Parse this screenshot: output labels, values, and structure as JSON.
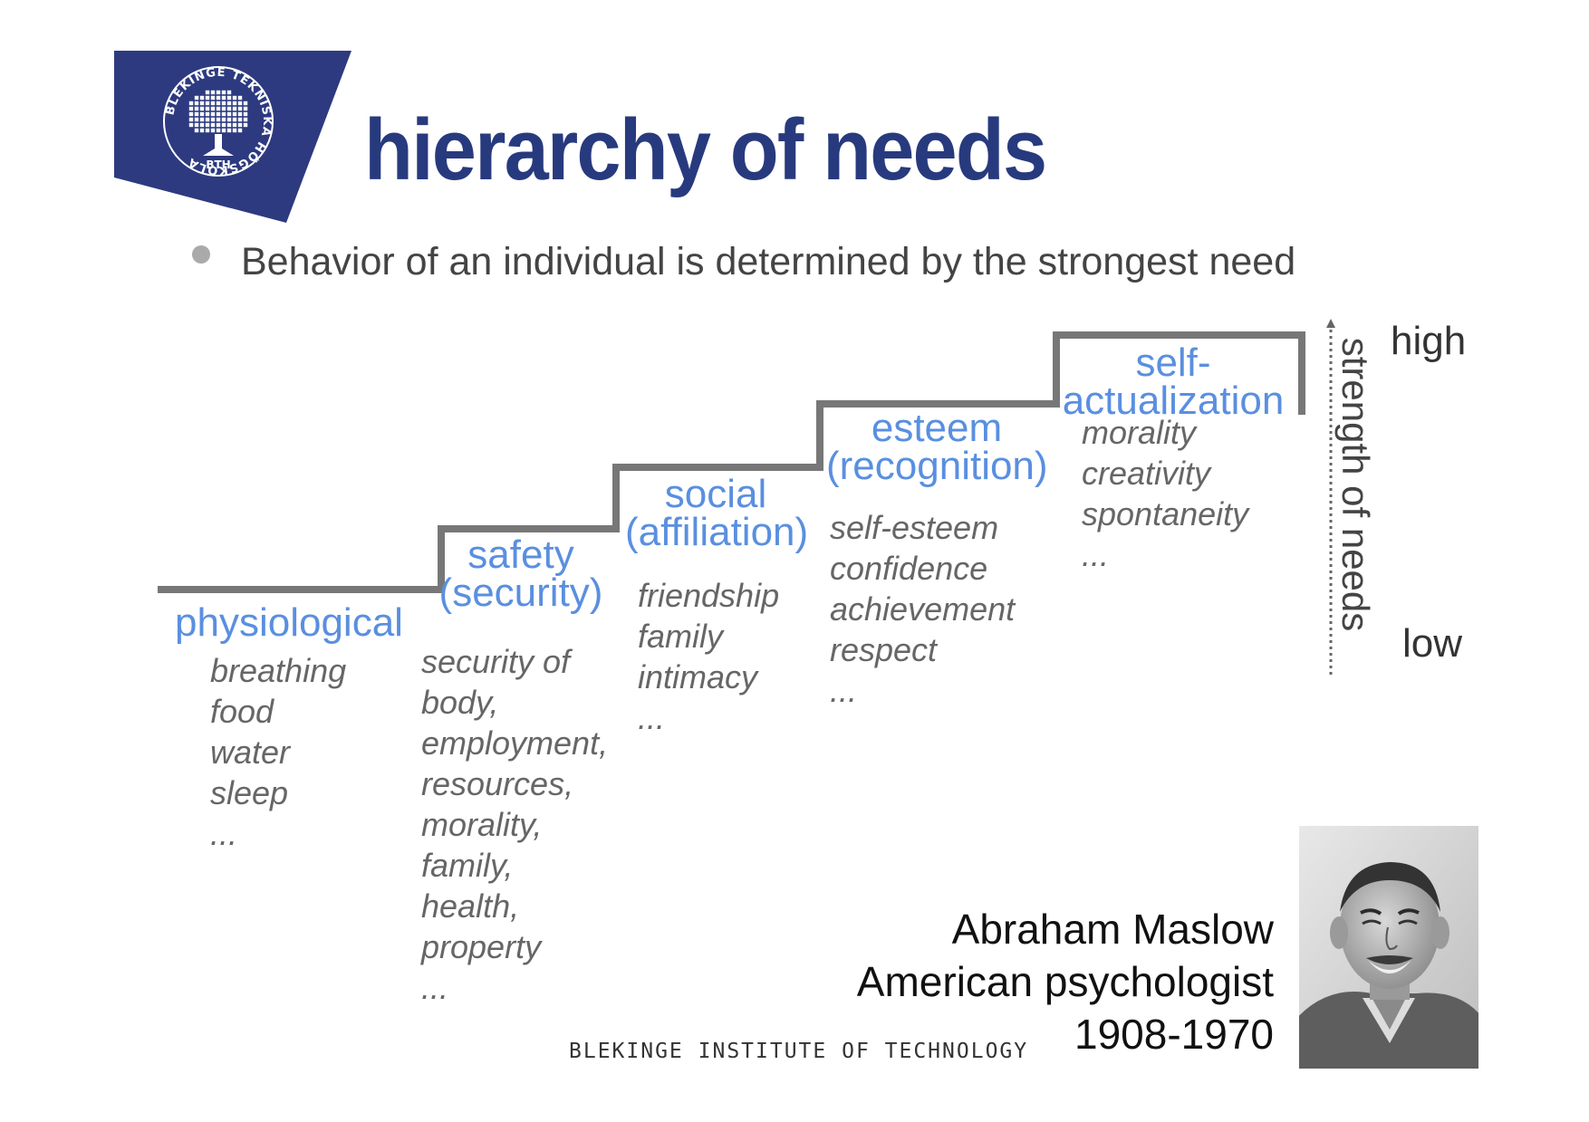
{
  "logo": {
    "ring_text": "BLEKINGE TEKNISKA HÖGSKOLA",
    "center_text": "BTH",
    "color": "#2d3a80"
  },
  "title": "hierarchy of needs",
  "bullet": "Behavior of an individual is determined by the strongest need",
  "levels": [
    {
      "name": "physiological",
      "items": [
        "breathing",
        "food",
        "water",
        "sleep",
        "..."
      ]
    },
    {
      "name": "safety (security)",
      "name_lines": [
        "safety",
        "(security)"
      ],
      "items": [
        "security of",
        "body,",
        "employment,",
        "resources,",
        "morality,",
        "family,",
        "health,",
        "property",
        "..."
      ]
    },
    {
      "name": "social (affiliation)",
      "name_lines": [
        "social",
        "(affiliation)"
      ],
      "items": [
        "friendship",
        "family",
        "intimacy",
        "..."
      ]
    },
    {
      "name": "esteem (recognition)",
      "name_lines": [
        "esteem",
        "(recognition)"
      ],
      "items": [
        "self-esteem",
        "confidence",
        "achievement",
        "respect",
        "..."
      ]
    },
    {
      "name": "self-actualization",
      "name_lines": [
        "self-",
        "actualization"
      ],
      "items": [
        "morality",
        "creativity",
        "spontaneity",
        "..."
      ]
    }
  ],
  "axis": {
    "label": "strength of needs",
    "high": "high",
    "low": "low"
  },
  "caption": {
    "name": "Abraham Maslow",
    "role": "American psychologist",
    "years": "1908-1970"
  },
  "footer": "BLEKINGE INSTITUTE OF TECHNOLOGY",
  "colors": {
    "title": "#283a7e",
    "category": "#5a8fe0",
    "items": "#666666",
    "stairs": "#777777"
  }
}
